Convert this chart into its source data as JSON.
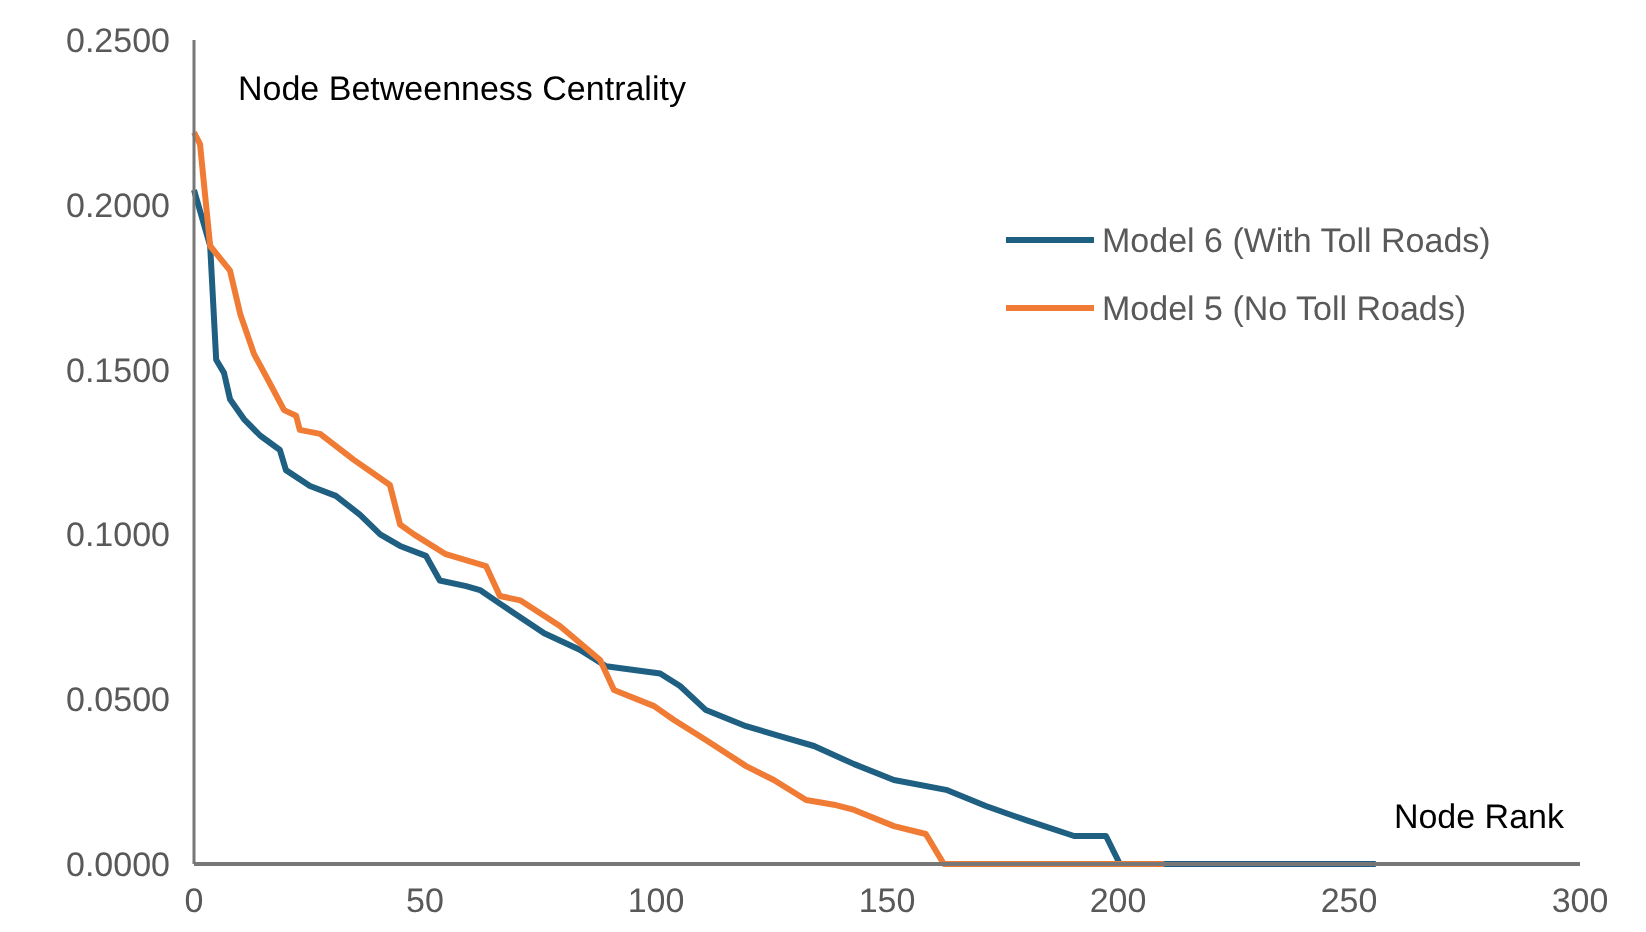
{
  "chart_data": {
    "type": "line",
    "xlabel": "Node Rank",
    "ylabel": "Node Betweenness Centrality",
    "xlim": [
      0,
      300
    ],
    "xticks": [
      0,
      50,
      100,
      150,
      200,
      250,
      300
    ],
    "ylim": [
      0,
      0.25
    ],
    "yticks": [
      {
        "value": 0,
        "label": "0.0000"
      },
      {
        "value": 0.05,
        "label": "0.0500"
      },
      {
        "value": 0.1,
        "label": "0.1000"
      },
      {
        "value": 0.15,
        "label": "0.1500"
      },
      {
        "value": 0.2,
        "label": "0.2000"
      },
      {
        "value": 0.25,
        "label": "0.2500"
      }
    ],
    "grid": false,
    "legend": "top right",
    "marker": "none",
    "line_style": "solid",
    "series": [
      {
        "name": "Model 6 (With Toll Roads)",
        "color": "#1f5f82",
        "x": [
          0,
          3.5,
          4.8,
          6.5,
          7.8,
          10.8,
          14.3,
          18.6,
          19.9,
          25.1,
          30.7,
          35.9,
          40.3,
          44.6,
          50.2,
          53.2,
          58.9,
          61.9,
          66.2,
          75.8,
          83.5,
          89.2,
          100.9,
          105.2,
          110.8,
          119.5,
          126.8,
          134.2,
          142.9,
          151.5,
          162.8,
          171.4,
          180.1,
          190.5,
          197.4,
          200.4,
          255.8
        ],
        "values": [
          0.2045,
          0.1875,
          0.153,
          0.149,
          0.141,
          0.135,
          0.13,
          0.1256,
          0.1195,
          0.1147,
          0.1117,
          0.106,
          0.1,
          0.0965,
          0.0935,
          0.086,
          0.0843,
          0.0831,
          0.079,
          0.07,
          0.065,
          0.06,
          0.0578,
          0.054,
          0.0467,
          0.0418,
          0.0388,
          0.0358,
          0.0303,
          0.0255,
          0.0225,
          0.0176,
          0.0133,
          0.0085,
          0.0085,
          0,
          0
        ]
      },
      {
        "name": "Model 5 (No Toll Roads)",
        "color": "#f07b35",
        "x": [
          0,
          1.3,
          3.5,
          7.8,
          10,
          13,
          15.6,
          19.5,
          22.1,
          22.9,
          27.3,
          34.6,
          39,
          42.4,
          44.6,
          47.6,
          54.5,
          63.2,
          66.2,
          70.6,
          79.2,
          87.9,
          90.9,
          99.6,
          103.9,
          110.8,
          119.5,
          125.5,
          132.5,
          138.5,
          142.9,
          151.5,
          158.4,
          162.3,
          210
        ],
        "values": [
          0.222,
          0.2184,
          0.1875,
          0.18,
          0.1669,
          0.1547,
          0.148,
          0.1377,
          0.136,
          0.1317,
          0.1305,
          0.1226,
          0.1183,
          0.115,
          0.103,
          0.1,
          0.094,
          0.0904,
          0.0813,
          0.08,
          0.0722,
          0.0619,
          0.0528,
          0.0479,
          0.0437,
          0.0376,
          0.0297,
          0.0255,
          0.0194,
          0.018,
          0.0164,
          0.0115,
          0.0091,
          0,
          0
        ]
      }
    ]
  }
}
